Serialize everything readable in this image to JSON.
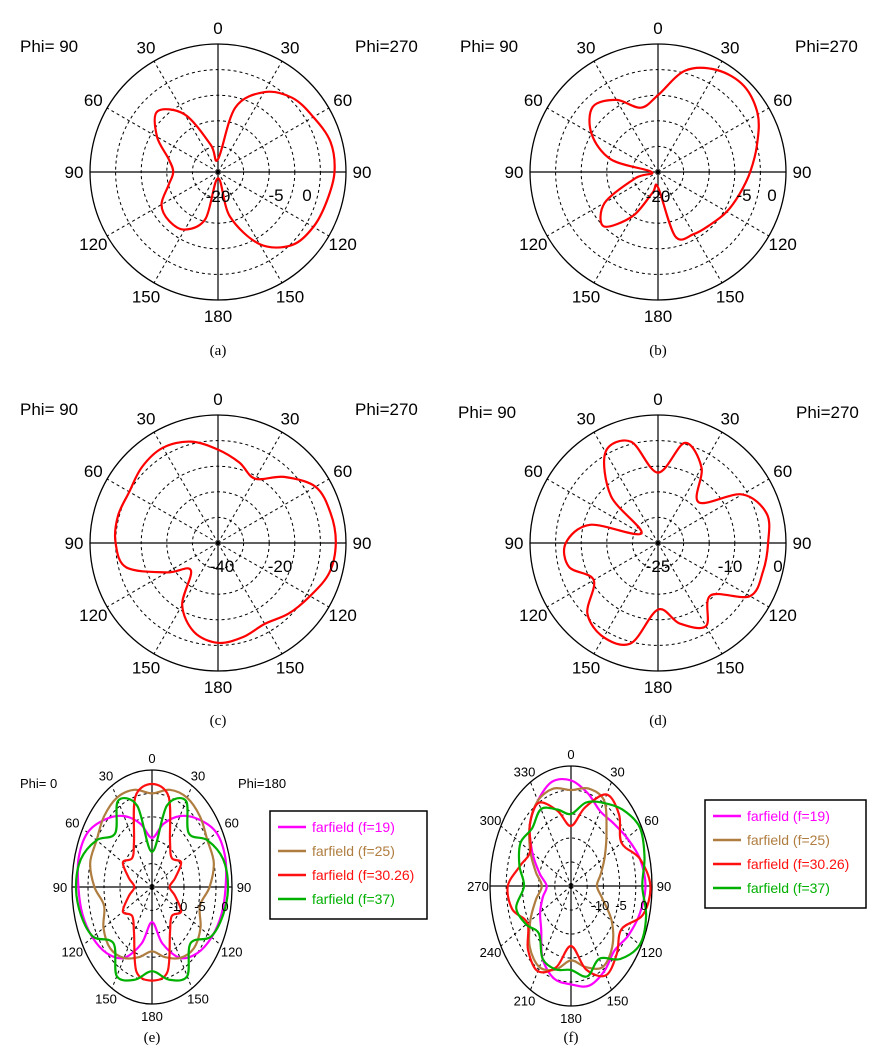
{
  "chart_data": [
    {
      "type": "line",
      "caption": "(a)",
      "phi_left": "Phi= 90",
      "phi_right": "Phi=270",
      "angle_labels": [
        "0",
        "30",
        "60",
        "90",
        "120",
        "150",
        "180",
        "150",
        "120",
        "90",
        "60",
        "30"
      ],
      "radial_labels": [
        "-20",
        "-5",
        "0"
      ],
      "series": [
        {
          "color": "#ff0000",
          "theta": [
            0,
            15,
            30,
            45,
            60,
            75,
            90,
            105,
            120,
            135,
            150,
            165,
            180,
            195,
            210,
            225,
            240,
            255,
            270,
            285,
            300,
            315,
            330,
            345
          ],
          "r": [
            0.1,
            0.52,
            0.72,
            0.82,
            0.86,
            0.91,
            0.91,
            0.88,
            0.86,
            0.81,
            0.65,
            0.36,
            0.05,
            0.38,
            0.52,
            0.54,
            0.51,
            0.4,
            0.35,
            0.4,
            0.55,
            0.67,
            0.52,
            0.22
          ]
        }
      ]
    },
    {
      "type": "line",
      "caption": "(b)",
      "phi_left": "Phi= 90",
      "phi_right": "Phi=270",
      "angle_labels": [
        "0",
        "30",
        "60",
        "90",
        "120",
        "150",
        "180",
        "150",
        "120",
        "90",
        "60",
        "30"
      ],
      "radial_labels": [
        "-20",
        "-5",
        "0"
      ],
      "series": [
        {
          "color": "#ff0000",
          "theta": [
            0,
            15,
            30,
            45,
            60,
            75,
            90,
            105,
            120,
            135,
            150,
            165,
            180,
            195,
            210,
            225,
            240,
            255,
            270,
            285,
            300,
            315,
            330,
            345
          ],
          "r": [
            0.6,
            0.82,
            0.92,
            0.95,
            0.9,
            0.8,
            0.72,
            0.66,
            0.62,
            0.58,
            0.56,
            0.52,
            0.12,
            0.17,
            0.4,
            0.6,
            0.48,
            0.18,
            0.05,
            0.38,
            0.6,
            0.72,
            0.65,
            0.52
          ]
        }
      ]
    },
    {
      "type": "line",
      "caption": "(c)",
      "phi_left": "Phi= 90",
      "phi_right": "Phi=270",
      "angle_labels": [
        "0",
        "30",
        "60",
        "90",
        "120",
        "150",
        "180",
        "150",
        "120",
        "90",
        "60",
        "30"
      ],
      "radial_labels": [
        "-40",
        "-20",
        "0"
      ],
      "series": [
        {
          "color": "#ff0000",
          "theta": [
            0,
            15,
            30,
            45,
            60,
            75,
            90,
            105,
            120,
            135,
            150,
            165,
            180,
            195,
            210,
            225,
            240,
            255,
            270,
            285,
            300,
            315,
            330,
            345
          ],
          "r": [
            0.73,
            0.65,
            0.58,
            0.73,
            0.88,
            0.91,
            0.92,
            0.9,
            0.83,
            0.78,
            0.73,
            0.76,
            0.78,
            0.72,
            0.56,
            0.3,
            0.46,
            0.74,
            0.8,
            0.81,
            0.8,
            0.84,
            0.86,
            0.82
          ]
        }
      ]
    },
    {
      "type": "line",
      "caption": "(d)",
      "phi_left": "Phi= 90",
      "phi_right": "Phi=270",
      "angle_labels": [
        "0",
        "30",
        "60",
        "90",
        "120",
        "150",
        "180",
        "150",
        "120",
        "90",
        "60",
        "30"
      ],
      "radial_labels": [
        "-25",
        "-10",
        "0"
      ],
      "series": [
        {
          "color": "#ff0000",
          "theta": [
            0,
            15,
            30,
            45,
            60,
            75,
            90,
            105,
            120,
            135,
            150,
            165,
            180,
            195,
            210,
            225,
            240,
            255,
            270,
            285,
            300,
            315,
            330,
            345
          ],
          "r": [
            0.55,
            0.81,
            0.68,
            0.45,
            0.76,
            0.88,
            0.86,
            0.85,
            0.83,
            0.58,
            0.75,
            0.65,
            0.52,
            0.81,
            0.85,
            0.78,
            0.58,
            0.72,
            0.72,
            0.55,
            0.15,
            0.52,
            0.82,
            0.82
          ]
        }
      ]
    },
    {
      "type": "line",
      "caption": "(e)",
      "phi_left": "Phi=  0",
      "phi_right": "Phi=180",
      "angle_labels": [
        "0",
        "30",
        "60",
        "90",
        "120",
        "150",
        "180",
        "150",
        "120",
        "90",
        "60",
        "30"
      ],
      "radial_labels": [
        "-10",
        "-5",
        "0"
      ],
      "legend": [
        "farfield (f=19)",
        "farfield (f=25)",
        "farfield (f=30.26)",
        "farfield (f=37)"
      ],
      "series": [
        {
          "name": "farfield (f=19)",
          "color": "#ff00ff",
          "theta": [
            0,
            15,
            30,
            45,
            60,
            75,
            90,
            105,
            120,
            135,
            150,
            165,
            180,
            195,
            210,
            225,
            240,
            255,
            270,
            285,
            300,
            315,
            330,
            345
          ],
          "r": [
            0.42,
            0.56,
            0.7,
            0.82,
            0.93,
            0.95,
            0.92,
            0.9,
            0.86,
            0.8,
            0.7,
            0.5,
            0.3,
            0.5,
            0.7,
            0.8,
            0.86,
            0.9,
            0.92,
            0.95,
            0.93,
            0.82,
            0.7,
            0.56
          ]
        },
        {
          "name": "farfield (f=25)",
          "color": "#b07d40",
          "theta": [
            0,
            15,
            30,
            45,
            60,
            75,
            90,
            105,
            120,
            135,
            150,
            165,
            180,
            195,
            210,
            225,
            240,
            255,
            270,
            285,
            300,
            315,
            330,
            345
          ],
          "r": [
            0.8,
            0.86,
            0.88,
            0.85,
            0.8,
            0.8,
            0.72,
            0.62,
            0.7,
            0.74,
            0.7,
            0.62,
            0.55,
            0.62,
            0.7,
            0.74,
            0.7,
            0.62,
            0.72,
            0.8,
            0.8,
            0.85,
            0.88,
            0.86
          ]
        },
        {
          "name": "farfield (f=30.26)",
          "color": "#ff1010",
          "theta": [
            0,
            15,
            30,
            45,
            60,
            75,
            90,
            105,
            120,
            135,
            150,
            165,
            180,
            195,
            210,
            225,
            240,
            255,
            270,
            285,
            300,
            315,
            330,
            345
          ],
          "r": [
            0.88,
            0.8,
            0.45,
            0.35,
            0.42,
            0.3,
            0.22,
            0.3,
            0.42,
            0.35,
            0.45,
            0.75,
            0.8,
            0.75,
            0.45,
            0.35,
            0.42,
            0.3,
            0.22,
            0.3,
            0.42,
            0.35,
            0.45,
            0.8
          ]
        },
        {
          "name": "farfield (f=37)",
          "color": "#00b000",
          "theta": [
            0,
            15,
            30,
            45,
            60,
            75,
            90,
            105,
            120,
            135,
            150,
            165,
            180,
            195,
            210,
            225,
            240,
            255,
            270,
            285,
            300,
            315,
            330,
            345
          ],
          "r": [
            0.3,
            0.72,
            0.85,
            0.65,
            0.8,
            0.92,
            0.95,
            0.92,
            0.85,
            0.68,
            0.88,
            0.82,
            0.72,
            0.82,
            0.88,
            0.68,
            0.85,
            0.92,
            0.95,
            0.92,
            0.8,
            0.65,
            0.85,
            0.72
          ]
        }
      ]
    },
    {
      "type": "line",
      "caption": "(f)",
      "angle_labels": [
        "0",
        "30",
        "60",
        "90",
        "120",
        "150",
        "180",
        "210",
        "240",
        "270",
        "300",
        "330"
      ],
      "radial_labels": [
        "-10",
        "-5",
        "0"
      ],
      "legend": [
        "farfield (f=19)",
        "farfield (f=25)",
        "farfield (f=30.26)",
        "farfield (f=37)"
      ],
      "series": [
        {
          "name": "farfield (f=19)",
          "color": "#ff00ff",
          "theta": [
            0,
            15,
            30,
            45,
            60,
            75,
            90,
            105,
            120,
            135,
            150,
            165,
            180,
            195,
            210,
            225,
            240,
            255,
            270,
            285,
            300,
            315,
            330,
            345
          ],
          "r": [
            0.88,
            0.8,
            0.72,
            0.74,
            0.8,
            0.88,
            0.92,
            0.88,
            0.82,
            0.76,
            0.82,
            0.86,
            0.82,
            0.8,
            0.7,
            0.52,
            0.44,
            0.36,
            0.3,
            0.4,
            0.55,
            0.72,
            0.82,
            0.9
          ]
        },
        {
          "name": "farfield (f=25)",
          "color": "#b07d40",
          "theta": [
            0,
            15,
            30,
            45,
            60,
            75,
            90,
            105,
            120,
            135,
            150,
            165,
            180,
            195,
            210,
            225,
            240,
            255,
            270,
            285,
            300,
            315,
            330,
            345
          ],
          "r": [
            0.8,
            0.84,
            0.82,
            0.62,
            0.48,
            0.38,
            0.32,
            0.4,
            0.58,
            0.72,
            0.78,
            0.7,
            0.62,
            0.72,
            0.78,
            0.72,
            0.58,
            0.45,
            0.36,
            0.45,
            0.58,
            0.72,
            0.82,
            0.84
          ]
        },
        {
          "name": "farfield (f=30.26)",
          "color": "#ff1010",
          "theta": [
            0,
            15,
            30,
            45,
            60,
            75,
            90,
            105,
            120,
            135,
            150,
            165,
            180,
            195,
            210,
            225,
            240,
            255,
            270,
            285,
            300,
            315,
            330,
            345
          ],
          "r": [
            0.5,
            0.68,
            0.88,
            0.84,
            0.72,
            0.88,
            0.98,
            0.92,
            0.72,
            0.8,
            0.86,
            0.72,
            0.5,
            0.7,
            0.82,
            0.75,
            0.62,
            0.75,
            0.78,
            0.65,
            0.58,
            0.72,
            0.8,
            0.65
          ]
        },
        {
          "name": "farfield (f=37)",
          "color": "#00b000",
          "theta": [
            0,
            15,
            30,
            45,
            60,
            75,
            90,
            105,
            120,
            135,
            150,
            165,
            180,
            195,
            210,
            225,
            240,
            255,
            270,
            285,
            300,
            315,
            330,
            345
          ],
          "r": [
            0.6,
            0.72,
            0.8,
            0.9,
            0.98,
            0.94,
            0.88,
            0.96,
            0.98,
            0.86,
            0.7,
            0.78,
            0.7,
            0.72,
            0.7,
            0.56,
            0.64,
            0.7,
            0.58,
            0.66,
            0.72,
            0.68,
            0.74,
            0.66
          ]
        }
      ]
    }
  ]
}
